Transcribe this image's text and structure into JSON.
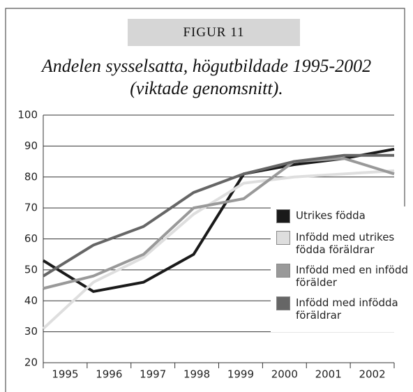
{
  "chart_data": {
    "type": "line",
    "header": "FIGUR 11",
    "title": "Andelen sysselsatta, högutbildade 1995-2002",
    "subtitle": "(viktade genomsnitt).",
    "categories": [
      "1995",
      "1996",
      "1997",
      "1998",
      "1999",
      "2000",
      "2001",
      "2002"
    ],
    "series": [
      {
        "name": "Utrikes födda",
        "color": "#1a1a1a",
        "values": [
          53,
          43,
          46,
          55,
          81,
          84,
          86,
          89
        ]
      },
      {
        "name": "Infödd med utrikes födda föräldrar",
        "color": "#dedede",
        "values": [
          31,
          46,
          54,
          68,
          78,
          80,
          81,
          82
        ]
      },
      {
        "name": "Infödd med en infödd förälder",
        "color": "#999999",
        "values": [
          44,
          48,
          55,
          70,
          73,
          85,
          86,
          81
        ]
      },
      {
        "name": "Infödd med infödda föräldrar",
        "color": "#666666",
        "values": [
          48,
          58,
          64,
          75,
          81,
          85,
          87,
          87
        ]
      }
    ],
    "ylim": [
      20,
      100
    ],
    "yticks": [
      20,
      30,
      40,
      50,
      60,
      70,
      80,
      90,
      100
    ],
    "grid": true,
    "legend": "right"
  }
}
